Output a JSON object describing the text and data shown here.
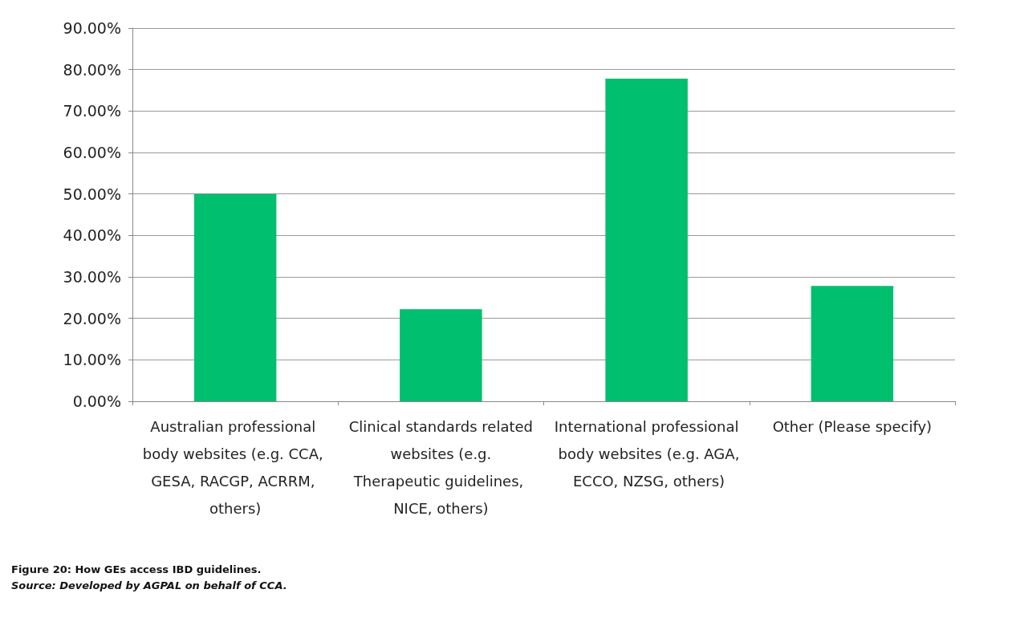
{
  "chart_data": {
    "type": "bar",
    "title": "Figure 20: How GEs access IBD guidelines.",
    "annotations": [
      "Source: Developed by AGPAL on behalf of CCA."
    ],
    "categories": [
      "Australian professional body websites (e.g. CCA, GESA, RACGP, ACRRM, others)",
      "Clinical standards related websites (e.g. Therapeutic guidelines, NICE, others)",
      "International professional body websites (e.g. AGA, ECCO, NZSG, others)",
      "Other (Please specify)"
    ],
    "values": [
      50.0,
      22.2,
      77.8,
      27.8
    ],
    "color": "#00bf6f",
    "ylim": [
      0,
      90
    ],
    "yticks": [
      {
        "value": 0,
        "label": "0.00%"
      },
      {
        "value": 10,
        "label": "10.00%"
      },
      {
        "value": 20,
        "label": "20.00%"
      },
      {
        "value": 30,
        "label": "30.00%"
      },
      {
        "value": 40,
        "label": "40.00%"
      },
      {
        "value": 50,
        "label": "50.00%"
      },
      {
        "value": 60,
        "label": "60.00%"
      },
      {
        "value": 70,
        "label": "70.00%"
      },
      {
        "value": 80,
        "label": "80.00%"
      },
      {
        "value": 90,
        "label": "90.00%"
      }
    ],
    "grid": "y"
  }
}
